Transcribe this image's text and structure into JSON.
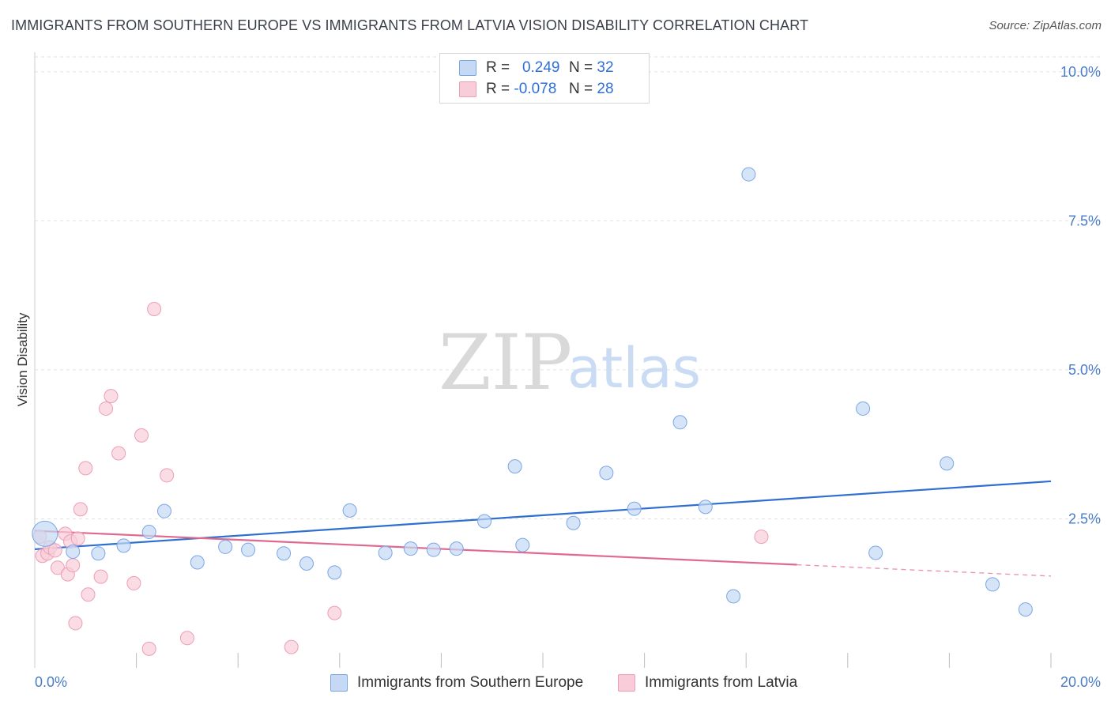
{
  "title": "IMMIGRANTS FROM SOUTHERN EUROPE VS IMMIGRANTS FROM LATVIA VISION DISABILITY CORRELATION CHART",
  "source": "Source: ZipAtlas.com",
  "watermark": {
    "zip": "ZIP",
    "atlas": "atlas"
  },
  "legend": {
    "r_label": "R =",
    "n_label": "N =",
    "rows": [
      {
        "r": "0.249",
        "n": "32"
      },
      {
        "r": "-0.078",
        "n": "28"
      }
    ]
  },
  "colors": {
    "blue_fill": "#c5d8f4",
    "blue_stroke": "#7aa6e6",
    "blue_line": "#2f6fd1",
    "pink_fill": "#f8cdd9",
    "pink_stroke": "#ee9db5",
    "pink_line": "#e0698f",
    "tick_color": "#4a7cc9"
  },
  "chart_data": {
    "type": "scatter",
    "title": "IMMIGRANTS FROM SOUTHERN EUROPE VS IMMIGRANTS FROM LATVIA VISION DISABILITY CORRELATION CHART",
    "ylabel": "Vision Disability",
    "xlim": [
      0,
      20
    ],
    "ylim": [
      0,
      10.25
    ],
    "x_tick_labels": [
      "0.0%",
      "20.0%"
    ],
    "y_ticks": [
      2.5,
      5.0,
      7.5,
      10.0
    ],
    "y_tick_labels": [
      "2.5%",
      "5.0%",
      "7.5%",
      "10.0%"
    ],
    "grid": true,
    "legend_position": "top-center",
    "series": [
      {
        "name": "Immigrants from Southern Europe",
        "points": [
          [
            0.2,
            2.25
          ],
          [
            0.75,
            1.95
          ],
          [
            1.25,
            1.92
          ],
          [
            1.75,
            2.05
          ],
          [
            2.25,
            2.28
          ],
          [
            2.55,
            2.63
          ],
          [
            3.2,
            1.77
          ],
          [
            3.75,
            2.03
          ],
          [
            4.2,
            1.98
          ],
          [
            4.9,
            1.92
          ],
          [
            5.35,
            1.75
          ],
          [
            5.9,
            1.6
          ],
          [
            6.2,
            2.64
          ],
          [
            6.9,
            1.93
          ],
          [
            7.4,
            2.0
          ],
          [
            7.85,
            1.98
          ],
          [
            8.3,
            2.0
          ],
          [
            8.85,
            2.46
          ],
          [
            9.45,
            3.38
          ],
          [
            9.6,
            2.06
          ],
          [
            10.6,
            2.43
          ],
          [
            11.25,
            3.27
          ],
          [
            11.8,
            2.67
          ],
          [
            12.7,
            4.12
          ],
          [
            13.2,
            2.7
          ],
          [
            13.75,
            1.2
          ],
          [
            14.05,
            8.28
          ],
          [
            16.3,
            4.35
          ],
          [
            16.55,
            1.93
          ],
          [
            17.95,
            3.43
          ],
          [
            18.85,
            1.4
          ],
          [
            19.5,
            0.98
          ]
        ],
        "trend": {
          "x": [
            0,
            20
          ],
          "y": [
            1.99,
            3.13
          ]
        }
      },
      {
        "name": "Immigrants from Latvia",
        "points": [
          [
            0.1,
            2.2
          ],
          [
            0.15,
            1.88
          ],
          [
            0.25,
            1.92
          ],
          [
            0.3,
            2.02
          ],
          [
            0.4,
            1.97
          ],
          [
            0.45,
            1.68
          ],
          [
            0.6,
            2.25
          ],
          [
            0.65,
            1.57
          ],
          [
            0.7,
            2.12
          ],
          [
            0.75,
            1.72
          ],
          [
            0.8,
            0.75
          ],
          [
            0.85,
            2.17
          ],
          [
            0.9,
            2.66
          ],
          [
            1.0,
            3.35
          ],
          [
            1.05,
            1.23
          ],
          [
            1.3,
            1.53
          ],
          [
            1.4,
            4.35
          ],
          [
            1.5,
            4.56
          ],
          [
            1.65,
            3.6
          ],
          [
            1.95,
            1.42
          ],
          [
            2.1,
            3.9
          ],
          [
            2.25,
            0.32
          ],
          [
            2.35,
            6.02
          ],
          [
            2.6,
            3.23
          ],
          [
            3.0,
            0.5
          ],
          [
            5.05,
            0.35
          ],
          [
            5.9,
            0.92
          ],
          [
            14.3,
            2.2
          ]
        ],
        "trend": {
          "x": [
            0,
            15
          ],
          "y": [
            2.3,
            1.73
          ]
        },
        "trend_dashed": {
          "x": [
            15,
            20
          ],
          "y": [
            1.73,
            1.54
          ]
        }
      }
    ]
  }
}
